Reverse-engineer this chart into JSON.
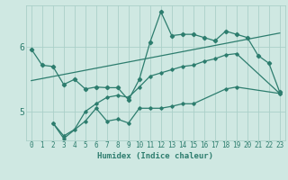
{
  "xlabel": "Humidex (Indice chaleur)",
  "bg_color": "#cfe8e2",
  "line_color": "#2d7d6e",
  "grid_color": "#aacfc8",
  "xlim": [
    -0.5,
    23.5
  ],
  "ylim": [
    4.55,
    6.65
  ],
  "yticks": [
    5,
    6
  ],
  "xticks": [
    0,
    1,
    2,
    3,
    4,
    5,
    6,
    7,
    8,
    9,
    10,
    11,
    12,
    13,
    14,
    15,
    16,
    17,
    18,
    19,
    20,
    21,
    22,
    23
  ],
  "series1": {
    "x": [
      0,
      1,
      2,
      3,
      4,
      5,
      6,
      7,
      8,
      9,
      10,
      11,
      12,
      13,
      14,
      15,
      16,
      17,
      18,
      19,
      20,
      21,
      22,
      23
    ],
    "y": [
      5.97,
      5.72,
      5.7,
      5.42,
      5.5,
      5.35,
      5.38,
      5.37,
      5.37,
      5.18,
      5.5,
      6.08,
      6.55,
      6.18,
      6.2,
      6.2,
      6.15,
      6.1,
      6.25,
      6.2,
      6.15,
      5.87,
      5.75,
      5.3
    ]
  },
  "series2": {
    "x": [
      0,
      23
    ],
    "y": [
      5.48,
      6.22
    ]
  },
  "series3": {
    "x": [
      2,
      3,
      4,
      5,
      6,
      7,
      8,
      9,
      10,
      11,
      12,
      13,
      14,
      15,
      16,
      17,
      18,
      19,
      23
    ],
    "y": [
      4.82,
      4.62,
      4.72,
      5.0,
      5.12,
      5.22,
      5.25,
      5.22,
      5.38,
      5.55,
      5.6,
      5.65,
      5.7,
      5.72,
      5.78,
      5.82,
      5.88,
      5.9,
      5.28
    ]
  },
  "series4": {
    "x": [
      2,
      3,
      5,
      6,
      7,
      8,
      9,
      10,
      11,
      12,
      13,
      14,
      15,
      18,
      19,
      23
    ],
    "y": [
      4.82,
      4.58,
      4.85,
      5.05,
      4.85,
      4.88,
      4.82,
      5.05,
      5.05,
      5.05,
      5.08,
      5.12,
      5.12,
      5.35,
      5.38,
      5.28
    ]
  }
}
